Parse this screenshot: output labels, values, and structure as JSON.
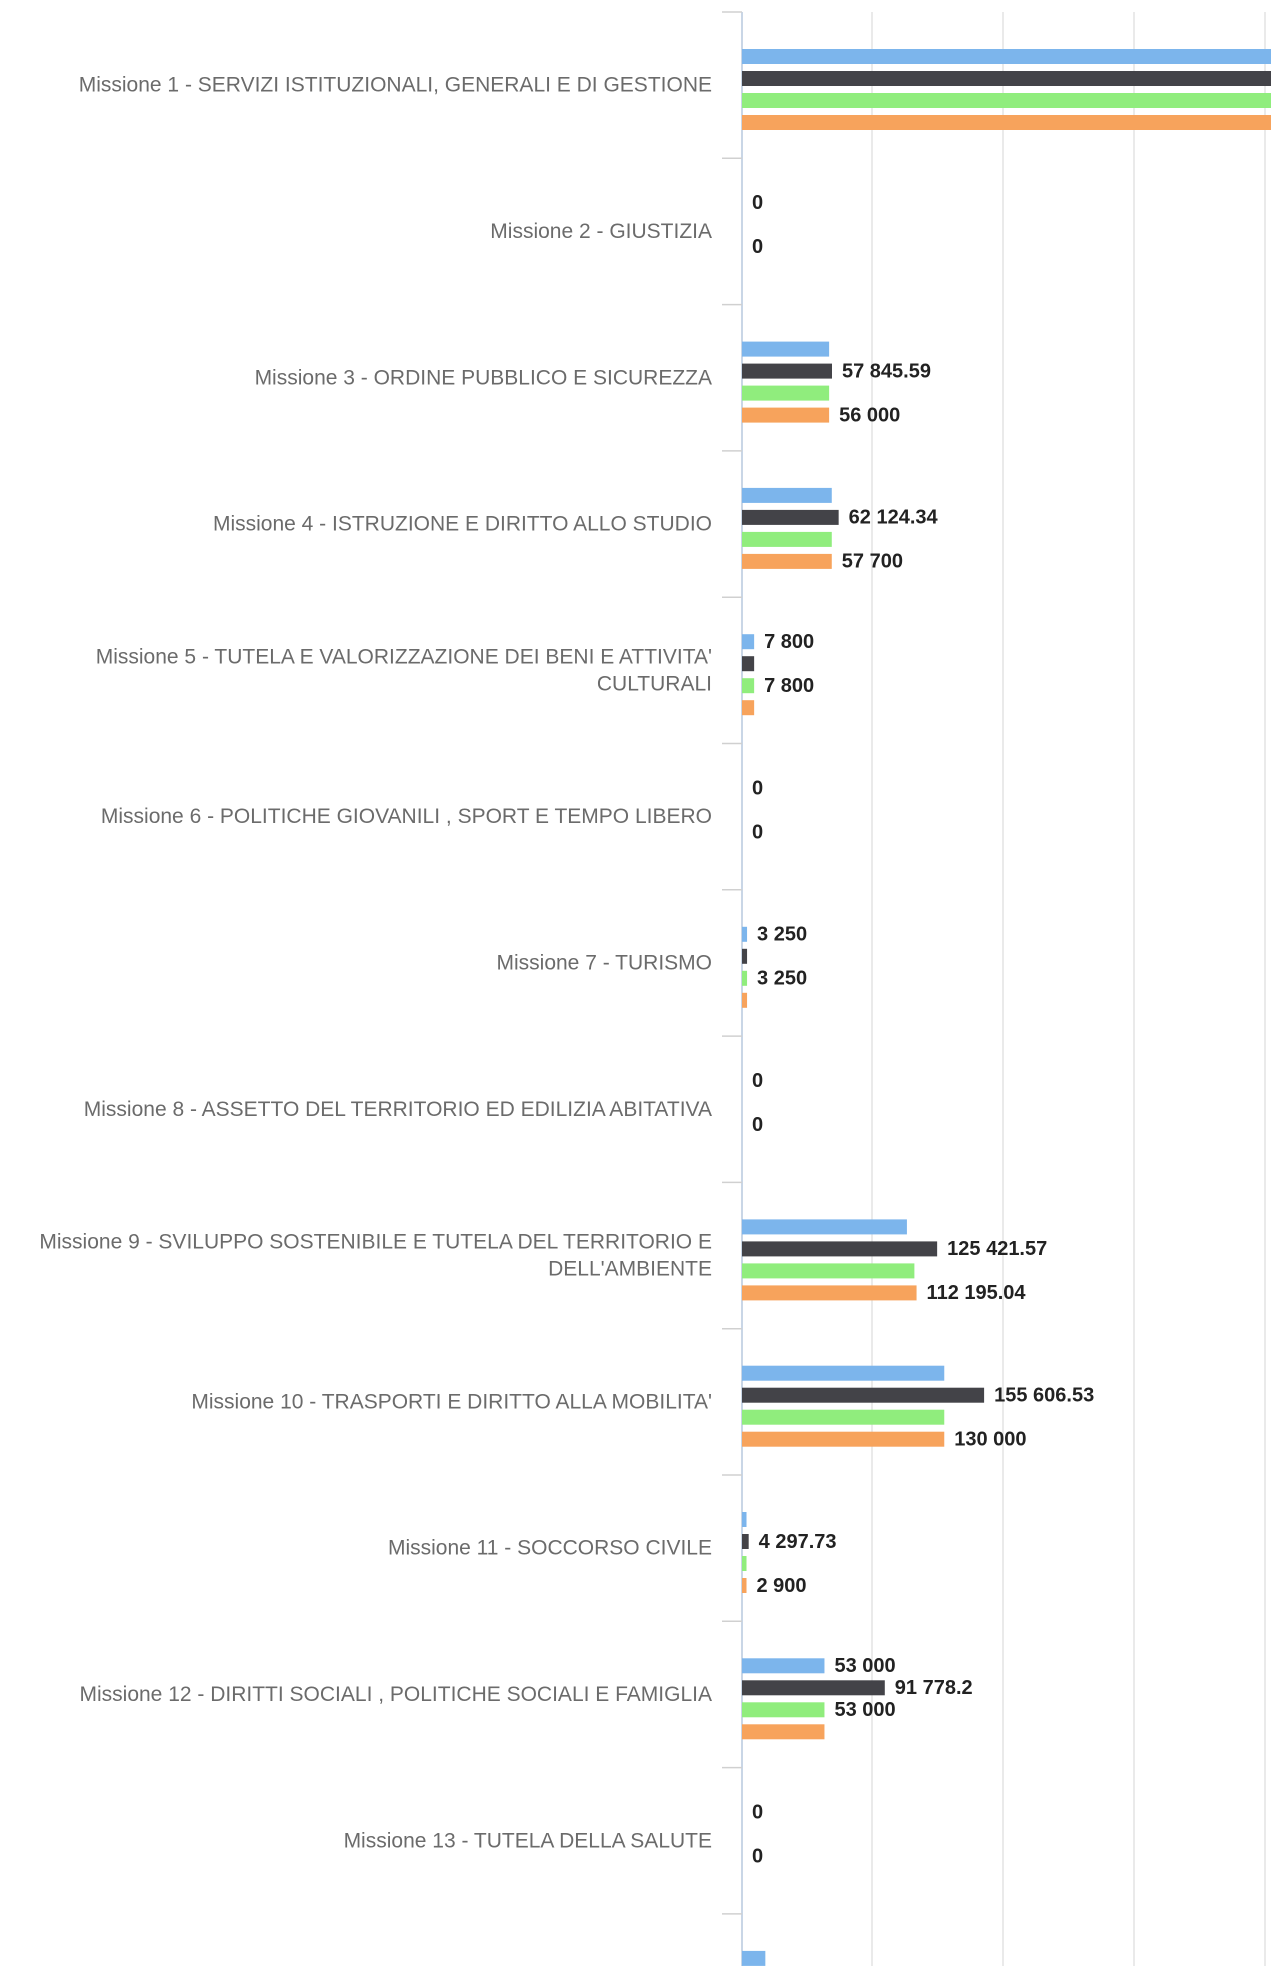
{
  "chart_data": {
    "type": "bar",
    "orientation": "horizontal",
    "xlim": [
      0,
      340000
    ],
    "grid": true,
    "categories": [
      [
        "Missione 1 - SERVIZI ISTITUZIONALI, GENERALI E DI GESTIONE"
      ],
      [
        "Missione 2 - GIUSTIZIA"
      ],
      [
        "Missione 3 - ORDINE PUBBLICO E SICUREZZA"
      ],
      [
        "Missione 4 - ISTRUZIONE E DIRITTO ALLO STUDIO"
      ],
      [
        "Missione 5 - TUTELA E VALORIZZAZIONE DEI BENI E ATTIVITA'",
        "CULTURALI"
      ],
      [
        "Missione 6 - POLITICHE GIOVANILI , SPORT E TEMPO LIBERO"
      ],
      [
        "Missione 7 - TURISMO"
      ],
      [
        "Missione 8 - ASSETTO DEL TERRITORIO ED EDILIZIA ABITATIVA"
      ],
      [
        "Missione 9 - SVILUPPO SOSTENIBILE E TUTELA DEL TERRITORIO E",
        "DELL'AMBIENTE"
      ],
      [
        "Missione 10 - TRASPORTI E DIRITTO ALLA MOBILITA'"
      ],
      [
        "Missione 11 - SOCCORSO CIVILE"
      ],
      [
        "Missione 12 - DIRITTI SOCIALI , POLITICHE SOCIALI E FAMIGLIA"
      ],
      [
        "Missione 13 - TUTELA DELLA SALUTE"
      ],
      [
        ""
      ]
    ],
    "series": [
      {
        "color": "#7cb5ec",
        "values": [
          340000,
          0,
          56000,
          57700,
          7800,
          0,
          3250,
          0,
          106000,
          130000,
          2900,
          53000,
          0,
          15000
        ]
      },
      {
        "color": "#434348",
        "values": [
          340000,
          0,
          57845.59,
          62124.34,
          7800,
          0,
          3250,
          0,
          125421.57,
          155606.53,
          4297.73,
          91778.2,
          0,
          null
        ]
      },
      {
        "color": "#90ed7d",
        "values": [
          340000,
          0,
          56000,
          57700,
          7800,
          0,
          3250,
          0,
          110800,
          130000,
          2900,
          53000,
          0,
          null
        ]
      },
      {
        "color": "#f7a35c",
        "values": [
          340000,
          0,
          56000,
          57700,
          7800,
          0,
          3250,
          0,
          112195.04,
          130000,
          2900,
          53000,
          0,
          null
        ]
      }
    ],
    "data_labels": [
      {
        "category": 1,
        "series": 0,
        "text": "0"
      },
      {
        "category": 1,
        "series": 2,
        "text": "0"
      },
      {
        "category": 2,
        "series": 1,
        "text": "57 845.59"
      },
      {
        "category": 2,
        "series": 3,
        "text": "56 000"
      },
      {
        "category": 3,
        "series": 1,
        "text": "62 124.34"
      },
      {
        "category": 3,
        "series": 3,
        "text": "57 700"
      },
      {
        "category": 4,
        "series": 0,
        "text": "7 800"
      },
      {
        "category": 4,
        "series": 2,
        "text": "7 800"
      },
      {
        "category": 5,
        "series": 0,
        "text": "0"
      },
      {
        "category": 5,
        "series": 2,
        "text": "0"
      },
      {
        "category": 6,
        "series": 0,
        "text": "3 250"
      },
      {
        "category": 6,
        "series": 2,
        "text": "3 250"
      },
      {
        "category": 7,
        "series": 0,
        "text": "0"
      },
      {
        "category": 7,
        "series": 2,
        "text": "0"
      },
      {
        "category": 8,
        "series": 1,
        "text": "125 421.57"
      },
      {
        "category": 8,
        "series": 3,
        "text": "112 195.04"
      },
      {
        "category": 9,
        "series": 1,
        "text": "155 606.53"
      },
      {
        "category": 9,
        "series": 3,
        "text": "130 000"
      },
      {
        "category": 10,
        "series": 1,
        "text": "4 297.73"
      },
      {
        "category": 10,
        "series": 3,
        "text": "2 900"
      },
      {
        "category": 11,
        "series": 0,
        "text": "53 000"
      },
      {
        "category": 11,
        "series": 1,
        "text": "91 778.2"
      },
      {
        "category": 11,
        "series": 2,
        "text": "53 000"
      },
      {
        "category": 12,
        "series": 0,
        "text": "0"
      },
      {
        "category": 12,
        "series": 2,
        "text": "0"
      }
    ]
  }
}
